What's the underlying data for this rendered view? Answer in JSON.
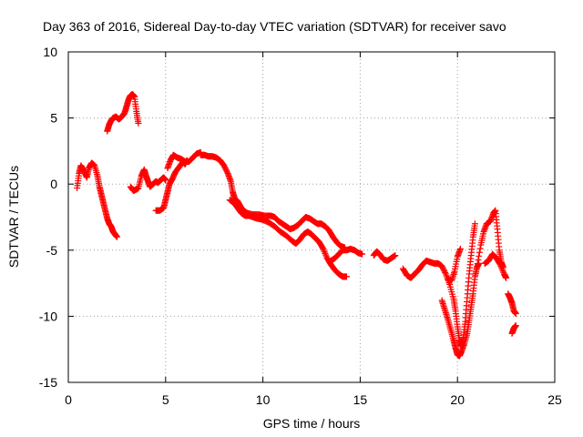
{
  "chart_data": {
    "type": "scatter",
    "title": "Day 363 of 2016, Sidereal Day-to-day VTEC variation (SDTVAR) for receiver savo",
    "xlabel": "GPS time / hours",
    "ylabel": "SDTVAR / TECUs",
    "xlim": [
      0,
      25
    ],
    "ylim": [
      -15,
      10
    ],
    "xticks": [
      "0",
      "5",
      "10",
      "15",
      "20",
      "25"
    ],
    "yticks": [
      "10",
      "5",
      "0",
      "-5",
      "-10",
      "-15"
    ],
    "grid": true,
    "series": [
      {
        "name": "SDTVAR",
        "marker": "+",
        "color": "#ff0000",
        "segments": [
          [
            [
              0.45,
              -0.3
            ],
            [
              0.55,
              0.8
            ],
            [
              0.65,
              1.4
            ],
            [
              0.8,
              1.0
            ],
            [
              0.95,
              0.5
            ],
            [
              1.05,
              1.2
            ],
            [
              1.2,
              1.6
            ],
            [
              1.35,
              1.4
            ],
            [
              1.5,
              0.6
            ],
            [
              1.6,
              -0.2
            ],
            [
              1.7,
              -0.8
            ],
            [
              1.8,
              -1.4
            ],
            [
              1.9,
              -2.0
            ],
            [
              2.0,
              -2.6
            ],
            [
              2.1,
              -3.0
            ],
            [
              2.2,
              -3.2
            ],
            [
              2.3,
              -3.6
            ],
            [
              2.4,
              -3.8
            ],
            [
              2.5,
              -4.0
            ]
          ],
          [
            [
              2.0,
              4.0
            ],
            [
              2.1,
              4.5
            ],
            [
              2.2,
              4.8
            ],
            [
              2.3,
              5.0
            ],
            [
              2.45,
              5.1
            ],
            [
              2.6,
              4.9
            ],
            [
              2.75,
              5.1
            ],
            [
              2.9,
              5.4
            ],
            [
              3.0,
              5.9
            ],
            [
              3.1,
              6.4
            ],
            [
              3.2,
              6.7
            ],
            [
              3.3,
              6.8
            ],
            [
              3.4,
              6.6
            ],
            [
              3.5,
              5.5
            ],
            [
              3.6,
              4.6
            ]
          ],
          [
            [
              3.2,
              -0.2
            ],
            [
              3.35,
              -0.5
            ],
            [
              3.5,
              -0.4
            ],
            [
              3.6,
              -0.3
            ],
            [
              3.75,
              0.6
            ],
            [
              3.9,
              1.1
            ],
            [
              4.0,
              0.6
            ],
            [
              4.1,
              0.2
            ],
            [
              4.2,
              -0.2
            ],
            [
              4.35,
              0.0
            ],
            [
              4.5,
              0.2
            ],
            [
              4.6,
              0.1
            ],
            [
              4.75,
              0.3
            ],
            [
              4.9,
              0.5
            ],
            [
              5.0,
              0.3
            ]
          ],
          [
            [
              4.5,
              -2.0
            ],
            [
              4.7,
              -2.0
            ],
            [
              4.9,
              -1.8
            ],
            [
              5.0,
              -1.2
            ],
            [
              5.1,
              -0.6
            ],
            [
              5.2,
              0.0
            ],
            [
              5.35,
              0.4
            ],
            [
              5.5,
              0.9
            ],
            [
              5.7,
              1.3
            ],
            [
              5.9,
              1.7
            ],
            [
              6.0,
              1.5
            ],
            [
              6.1,
              1.8
            ]
          ],
          [
            [
              5.1,
              1.2
            ],
            [
              5.25,
              1.8
            ],
            [
              5.4,
              2.2
            ],
            [
              5.6,
              2.0
            ],
            [
              5.8,
              1.9
            ],
            [
              6.0,
              1.7
            ],
            [
              6.2,
              1.7
            ],
            [
              6.4,
              2.0
            ],
            [
              6.6,
              2.3
            ],
            [
              6.8,
              2.4
            ]
          ],
          [
            [
              6.8,
              2.2
            ],
            [
              7.0,
              2.2
            ],
            [
              7.2,
              2.1
            ],
            [
              7.4,
              2.1
            ],
            [
              7.6,
              2.0
            ],
            [
              7.8,
              1.8
            ],
            [
              8.0,
              1.4
            ],
            [
              8.2,
              0.8
            ],
            [
              8.35,
              0.2
            ],
            [
              8.45,
              -0.6
            ],
            [
              8.55,
              -1.1
            ],
            [
              8.7,
              -1.3
            ],
            [
              8.85,
              -1.7
            ],
            [
              9.0,
              -2.0
            ],
            [
              9.2,
              -2.2
            ],
            [
              9.5,
              -2.3
            ],
            [
              9.8,
              -2.3
            ],
            [
              10.1,
              -2.4
            ],
            [
              10.4,
              -2.4
            ],
            [
              10.6,
              -2.5
            ],
            [
              10.8,
              -2.8
            ],
            [
              11.0,
              -3.0
            ],
            [
              11.2,
              -3.2
            ],
            [
              11.4,
              -3.4
            ],
            [
              11.6,
              -3.3
            ],
            [
              11.8,
              -3.1
            ],
            [
              12.0,
              -2.8
            ],
            [
              12.2,
              -2.5
            ],
            [
              12.4,
              -2.6
            ],
            [
              12.6,
              -2.8
            ],
            [
              12.8,
              -3.0
            ],
            [
              13.0,
              -3.0
            ],
            [
              13.2,
              -3.2
            ],
            [
              13.4,
              -3.5
            ],
            [
              13.6,
              -4.0
            ],
            [
              13.8,
              -4.4
            ],
            [
              14.0,
              -4.7
            ],
            [
              14.2,
              -4.8
            ]
          ],
          [
            [
              8.3,
              -1.2
            ],
            [
              8.5,
              -1.4
            ],
            [
              8.7,
              -1.8
            ],
            [
              8.9,
              -2.2
            ],
            [
              9.1,
              -2.4
            ],
            [
              9.3,
              -2.4
            ],
            [
              9.5,
              -2.5
            ],
            [
              9.7,
              -2.6
            ],
            [
              10.0,
              -2.7
            ],
            [
              10.3,
              -2.9
            ],
            [
              10.6,
              -3.2
            ],
            [
              10.9,
              -3.6
            ],
            [
              11.2,
              -3.9
            ],
            [
              11.5,
              -4.3
            ],
            [
              11.7,
              -4.5
            ],
            [
              11.9,
              -4.2
            ],
            [
              12.1,
              -3.8
            ],
            [
              12.3,
              -3.6
            ],
            [
              12.5,
              -3.8
            ],
            [
              12.7,
              -4.1
            ],
            [
              12.9,
              -4.4
            ],
            [
              13.1,
              -4.9
            ],
            [
              13.3,
              -5.6
            ],
            [
              13.5,
              -6.1
            ],
            [
              13.7,
              -6.5
            ],
            [
              13.9,
              -6.8
            ],
            [
              14.1,
              -7.0
            ],
            [
              14.3,
              -7.0
            ]
          ],
          [
            [
              13.5,
              -5.8
            ],
            [
              13.7,
              -5.6
            ],
            [
              13.9,
              -5.3
            ],
            [
              14.1,
              -5.0
            ],
            [
              14.3,
              -5.0
            ],
            [
              14.5,
              -4.9
            ],
            [
              14.7,
              -5.0
            ],
            [
              14.9,
              -5.2
            ],
            [
              15.1,
              -5.3
            ]
          ],
          [
            [
              15.7,
              -5.4
            ],
            [
              15.85,
              -5.1
            ],
            [
              16.0,
              -5.3
            ],
            [
              16.2,
              -5.7
            ],
            [
              16.4,
              -5.8
            ],
            [
              16.6,
              -5.6
            ],
            [
              16.8,
              -5.4
            ]
          ],
          [
            [
              17.2,
              -6.4
            ],
            [
              17.4,
              -6.9
            ],
            [
              17.6,
              -7.1
            ],
            [
              17.8,
              -6.8
            ],
            [
              18.0,
              -6.5
            ],
            [
              18.2,
              -6.1
            ],
            [
              18.4,
              -5.8
            ],
            [
              18.6,
              -5.9
            ],
            [
              18.8,
              -6.0
            ],
            [
              19.0,
              -6.0
            ],
            [
              19.2,
              -6.2
            ],
            [
              19.4,
              -6.8
            ],
            [
              19.6,
              -7.6
            ],
            [
              19.8,
              -8.7
            ],
            [
              19.9,
              -9.6
            ],
            [
              20.0,
              -10.8
            ],
            [
              20.1,
              -11.8
            ],
            [
              20.2,
              -12.3
            ],
            [
              20.3,
              -11.6
            ],
            [
              20.4,
              -10.4
            ],
            [
              20.5,
              -8.6
            ],
            [
              20.6,
              -6.8
            ],
            [
              20.7,
              -5.4
            ],
            [
              20.8,
              -4.0
            ],
            [
              20.9,
              -3.0
            ]
          ],
          [
            [
              19.2,
              -8.8
            ],
            [
              19.35,
              -9.5
            ],
            [
              19.5,
              -10.2
            ],
            [
              19.65,
              -11.0
            ],
            [
              19.8,
              -11.8
            ],
            [
              19.9,
              -12.4
            ],
            [
              20.0,
              -12.9
            ],
            [
              20.1,
              -13.0
            ],
            [
              20.2,
              -12.7
            ],
            [
              20.35,
              -12.1
            ],
            [
              20.5,
              -11.3
            ],
            [
              20.6,
              -10.3
            ],
            [
              20.7,
              -9.3
            ],
            [
              20.8,
              -8.3
            ],
            [
              20.9,
              -7.0
            ],
            [
              21.0,
              -6.3
            ],
            [
              21.1,
              -6.0
            ]
          ],
          [
            [
              19.5,
              -7.2
            ],
            [
              19.7,
              -7.3
            ],
            [
              19.85,
              -6.6
            ],
            [
              20.0,
              -5.5
            ],
            [
              20.15,
              -4.9
            ]
          ],
          [
            [
              21.0,
              -6.3
            ],
            [
              21.2,
              -4.6
            ],
            [
              21.35,
              -3.6
            ],
            [
              21.5,
              -3.0
            ],
            [
              21.7,
              -2.8
            ],
            [
              21.85,
              -2.2
            ],
            [
              21.95,
              -2.0
            ],
            [
              22.05,
              -3.4
            ],
            [
              22.15,
              -5.0
            ],
            [
              22.25,
              -5.9
            ],
            [
              22.35,
              -6.3
            ]
          ],
          [
            [
              21.4,
              -6.0
            ],
            [
              21.6,
              -5.8
            ],
            [
              21.8,
              -5.3
            ],
            [
              22.0,
              -5.6
            ],
            [
              22.2,
              -6.1
            ],
            [
              22.4,
              -6.8
            ],
            [
              22.5,
              -7.1
            ]
          ],
          [
            [
              22.6,
              -8.3
            ],
            [
              22.7,
              -8.6
            ],
            [
              22.8,
              -9.0
            ],
            [
              22.9,
              -9.6
            ],
            [
              23.0,
              -9.8
            ]
          ],
          [
            [
              22.8,
              -11.3
            ],
            [
              22.9,
              -10.9
            ],
            [
              23.0,
              -10.7
            ]
          ]
        ]
      }
    ]
  }
}
